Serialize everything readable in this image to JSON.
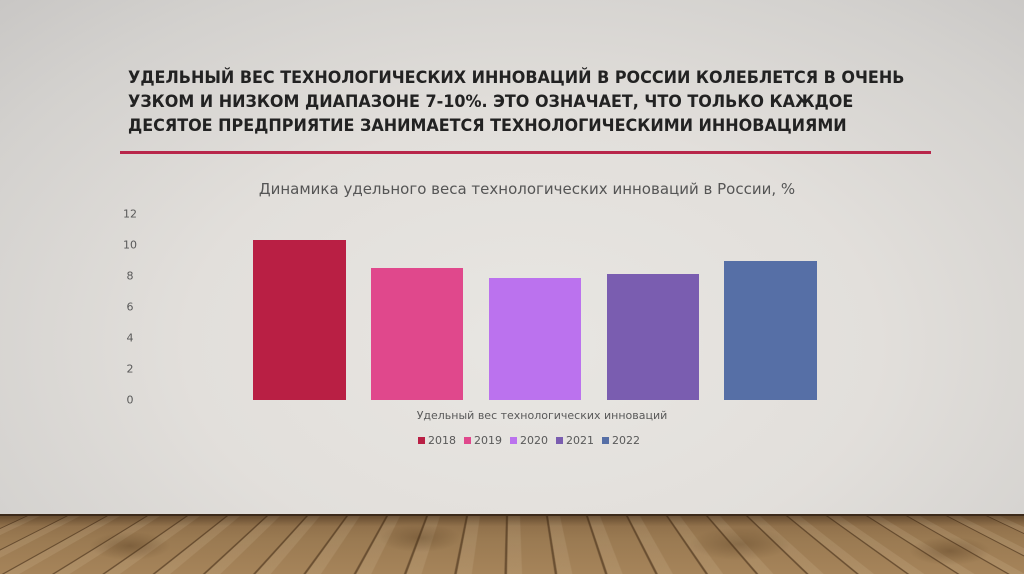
{
  "slide": {
    "title_lines": [
      "УДЕЛЬНЫЙ ВЕС ТЕХНОЛОГИЧЕСКИХ ИННОВАЦИЙ В РОССИИ КОЛЕБЛЕТСЯ В ОЧЕНЬ",
      "УЗКОМ И НИЗКОМ ДИАПАЗОНЕ 7-10%. ЭТО ОЗНАЧАЕТ, ЧТО ТОЛЬКО КАЖДОЕ",
      "ДЕСЯТОЕ ПРЕДПРИЯТИЕ ЗАНИМАЕТСЯ ТЕХНОЛОГИЧЕСКИМИ ИННОВАЦИЯМИ"
    ],
    "rule_color": "#b8264a"
  },
  "chart_data": {
    "type": "bar",
    "title": "Динамика удельного веса технологических инноваций в России, %",
    "categories": [
      "Удельный вес технологических инноваций"
    ],
    "xlabel": "Удельный вес технологических инноваций",
    "ylabel": "",
    "ylim": [
      0,
      12
    ],
    "yticks": [
      "0",
      "2",
      "4",
      "6",
      "8",
      "10",
      "12"
    ],
    "grid": false,
    "legend_position": "bottom",
    "series": [
      {
        "name": "2018",
        "values": [
          10.3
        ],
        "color": "#b91f44"
      },
      {
        "name": "2019",
        "values": [
          8.5
        ],
        "color": "#e0488c"
      },
      {
        "name": "2020",
        "values": [
          7.9
        ],
        "color": "#bb72ee"
      },
      {
        "name": "2021",
        "values": [
          8.1
        ],
        "color": "#7a5db0"
      },
      {
        "name": "2022",
        "values": [
          9.0
        ],
        "color": "#566fa6"
      }
    ]
  }
}
